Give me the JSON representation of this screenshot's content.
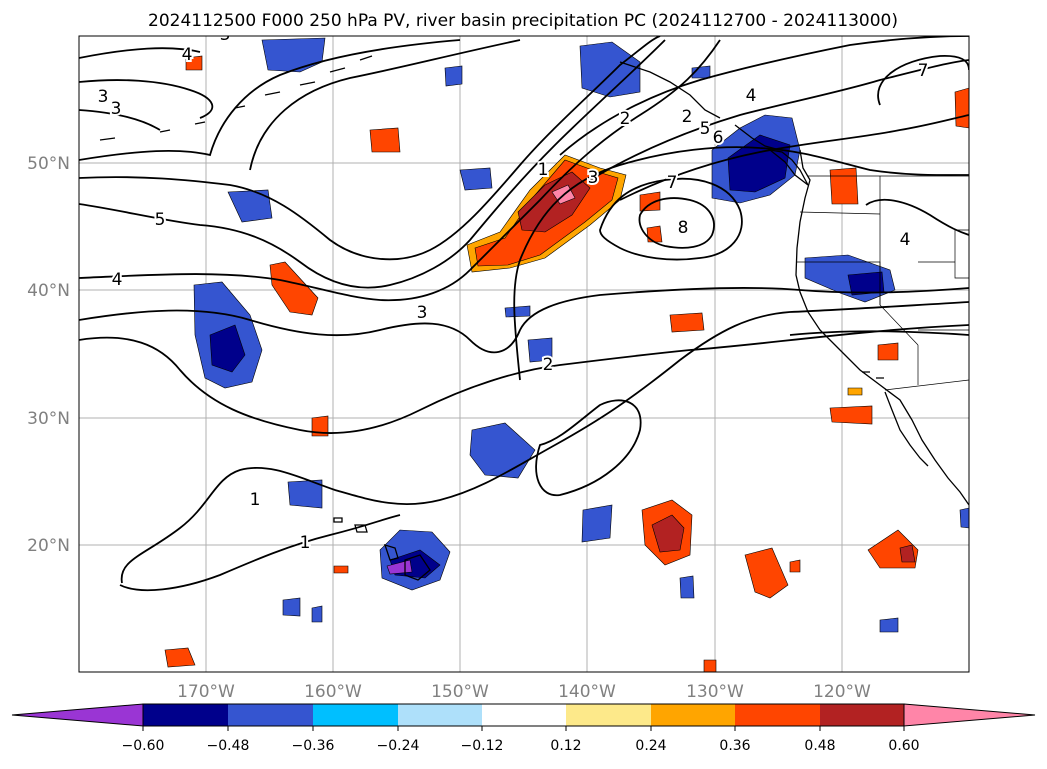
{
  "title": "2024112500 F000 250 hPa PV, river basin precipitation PC (2024112700 - 2024113000)",
  "lat_labels": [
    "50°N",
    "40°N",
    "30°N",
    "20°N"
  ],
  "lat_values": [
    50,
    40,
    30,
    20
  ],
  "lon_labels": [
    "170°W",
    "160°W",
    "150°W",
    "140°W",
    "130°W",
    "120°W"
  ],
  "lon_values": [
    -170,
    -160,
    -150,
    -140,
    -130,
    -120
  ],
  "extent": {
    "lon_min": -180,
    "lon_max": -110,
    "lat_min": 10,
    "lat_max": 60
  },
  "colorbar": {
    "ticks": [
      "−0.60",
      "−0.48",
      "−0.36",
      "−0.24",
      "−0.12",
      "0.12",
      "0.24",
      "0.36",
      "0.48",
      "0.60"
    ],
    "colors": [
      "#9a35d4",
      "#00008b",
      "#3555d0",
      "#00bfff",
      "#aee0fa",
      "#ffffff",
      "#fde98a",
      "#ffa500",
      "#ff4500",
      "#b22222",
      "#ff85a8"
    ]
  },
  "contour_labels": [
    "1",
    "1",
    "1",
    "2",
    "2",
    "2",
    "3",
    "3",
    "3",
    "3",
    "3",
    "4",
    "4",
    "4",
    "4",
    "5",
    "5",
    "6",
    "7",
    "7",
    "8"
  ],
  "colors": {
    "neg_strong": "#00008b",
    "neg_mid": "#3555d0",
    "neg_light": "#00bfff",
    "pos_light": "#ffa500",
    "pos_mid": "#ff4500",
    "pos_strong": "#b22222",
    "pos_max": "#ff85a8"
  }
}
